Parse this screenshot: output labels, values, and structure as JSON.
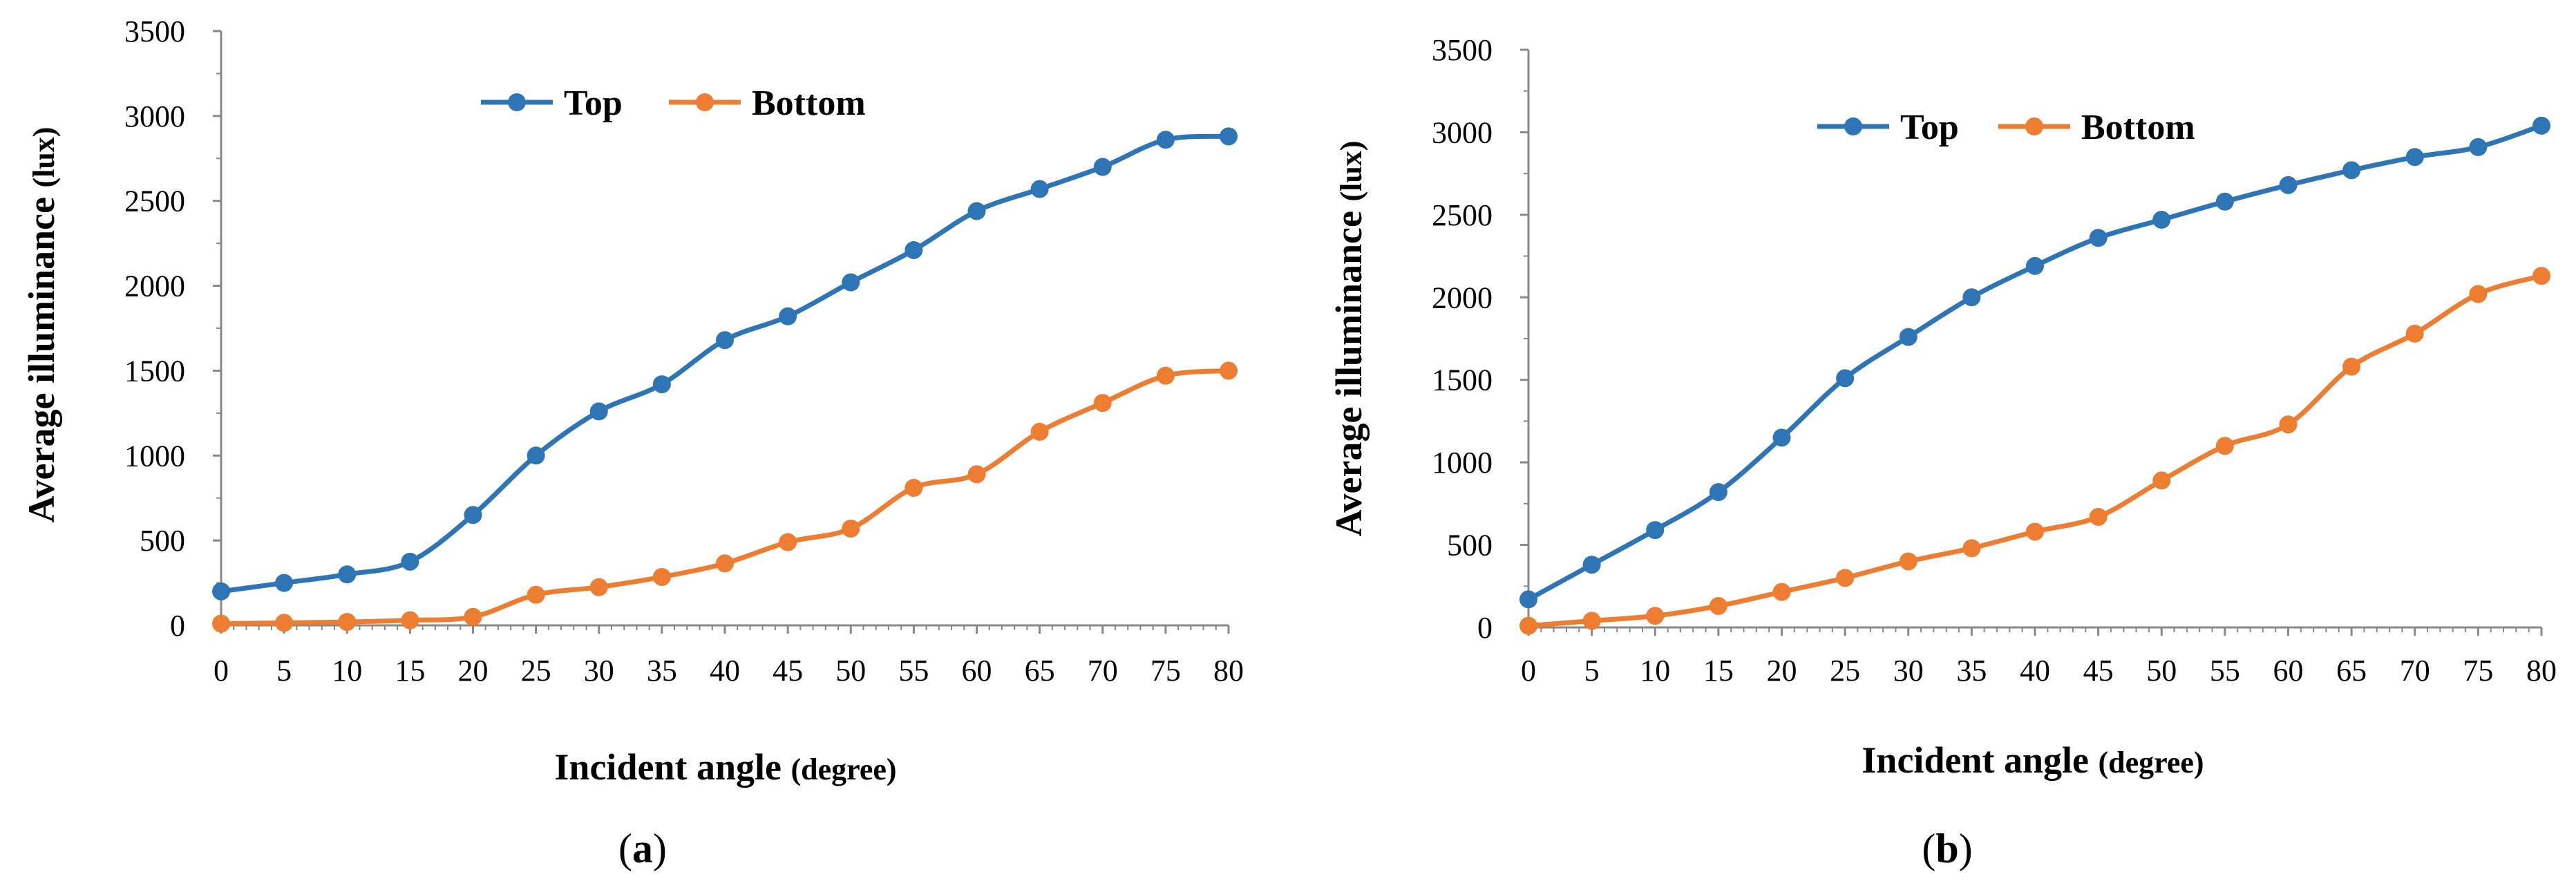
{
  "figure": {
    "panels": [
      "(a)",
      "(b)"
    ]
  },
  "chart_data": [
    {
      "id": "a",
      "type": "line",
      "panel_label": "(a)",
      "panel_letter": "a",
      "title": "",
      "xlabel": "Incident angle",
      "xlabel_unit": "(degree)",
      "ylabel": "Average illuminance",
      "ylabel_unit": "(lux)",
      "ylim": [
        0,
        3500
      ],
      "yticks": [
        0,
        500,
        1000,
        1500,
        2000,
        2500,
        3000,
        3500
      ],
      "x": [
        0,
        5,
        10,
        15,
        20,
        25,
        30,
        35,
        40,
        45,
        50,
        55,
        60,
        65,
        70,
        75,
        80
      ],
      "grid": false,
      "legend": "top-center",
      "series": [
        {
          "name": "Top",
          "color": "#2E75B6",
          "values": [
            200,
            250,
            300,
            375,
            650,
            1000,
            1260,
            1420,
            1680,
            1820,
            2020,
            2210,
            2440,
            2570,
            2700,
            2860,
            2880
          ]
        },
        {
          "name": "Bottom",
          "color": "#ED7D31",
          "values": [
            10,
            15,
            20,
            30,
            50,
            180,
            225,
            285,
            365,
            490,
            570,
            810,
            890,
            1140,
            1310,
            1470,
            1500
          ]
        }
      ]
    },
    {
      "id": "b",
      "type": "line",
      "panel_label": "(b)",
      "panel_letter": "b",
      "title": "",
      "xlabel": "Incident angle",
      "xlabel_unit": "(degree)",
      "ylabel": "Average illuminance",
      "ylabel_unit": "(lux)",
      "ylim": [
        0,
        3500
      ],
      "yticks": [
        0,
        500,
        1000,
        1500,
        2000,
        2500,
        3000,
        3500
      ],
      "x": [
        0,
        5,
        10,
        15,
        20,
        25,
        30,
        35,
        40,
        45,
        50,
        55,
        60,
        65,
        70,
        75,
        80
      ],
      "grid": false,
      "legend": "top-center",
      "series": [
        {
          "name": "Top",
          "color": "#2E75B6",
          "values": [
            170,
            380,
            590,
            820,
            1150,
            1510,
            1760,
            2000,
            2190,
            2360,
            2470,
            2580,
            2680,
            2770,
            2850,
            2910,
            3040
          ]
        },
        {
          "name": "Bottom",
          "color": "#ED7D31",
          "values": [
            10,
            40,
            70,
            130,
            215,
            300,
            400,
            480,
            580,
            670,
            890,
            1100,
            1230,
            1580,
            1780,
            2020,
            2130
          ]
        }
      ]
    }
  ]
}
